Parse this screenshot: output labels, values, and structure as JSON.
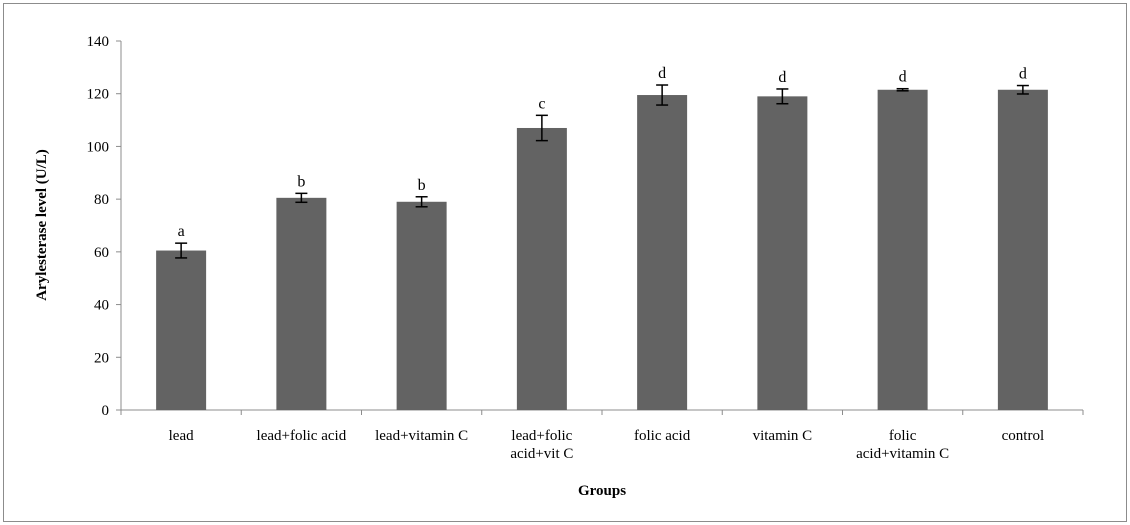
{
  "chart_data": {
    "type": "bar",
    "title": "",
    "xlabel": "Groups",
    "ylabel": "Arylesterase level (U/L)",
    "ylim": [
      0,
      140
    ],
    "yticks": [
      "0",
      "20",
      "40",
      "60",
      "80",
      "100",
      "120",
      "140"
    ],
    "categories": [
      [
        "lead"
      ],
      [
        "lead+folic acid"
      ],
      [
        "lead+vitamin C"
      ],
      [
        "lead+folic",
        "acid+vit C"
      ],
      [
        "folic acid"
      ],
      [
        "vitamin C"
      ],
      [
        "folic",
        "acid+vitamin C"
      ],
      [
        "control"
      ]
    ],
    "values": [
      60.5,
      80.5,
      79,
      107,
      119.5,
      119,
      121.5,
      121.5
    ],
    "errors": [
      2.8,
      1.7,
      1.9,
      4.8,
      3.8,
      2.8,
      0.4,
      1.6
    ],
    "significance_letters": [
      "a",
      "b",
      "b",
      "c",
      "d",
      "d",
      "d",
      "d"
    ],
    "grid": false,
    "legend": "none",
    "bar_color": "#636363"
  }
}
